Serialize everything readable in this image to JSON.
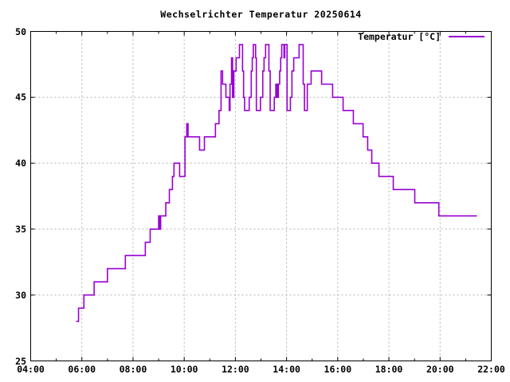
{
  "title": "Wechselrichter Temperatur 20250614",
  "legend": {
    "label": "Temperatur [°C]"
  },
  "colors": {
    "line": "#9800d3",
    "grid": "#b0b0b0",
    "axis": "#000000",
    "background": "#ffffff"
  },
  "chart_data": {
    "type": "line",
    "style": "steps",
    "title": "Wechselrichter Temperatur 20250614",
    "series_name": "Temperatur [°C]",
    "legend_position": "top-right",
    "grid": true,
    "xlabel": "",
    "ylabel": "",
    "x_axis": {
      "min": 4,
      "max": 22,
      "major_ticks": [
        4,
        6,
        8,
        10,
        12,
        14,
        16,
        18,
        20,
        22
      ],
      "tick_labels": [
        "04:00",
        "06:00",
        "08:00",
        "10:00",
        "12:00",
        "14:00",
        "16:00",
        "18:00",
        "20:00",
        "22:00"
      ],
      "minor_ticks": [
        5,
        7,
        9,
        11,
        13,
        15,
        17,
        19,
        21
      ]
    },
    "y_axis": {
      "min": 25,
      "max": 50,
      "major_ticks": [
        25,
        30,
        35,
        40,
        45,
        50
      ],
      "tick_labels": [
        "25",
        "30",
        "35",
        "40",
        "45",
        "50"
      ]
    },
    "points_format": [
      "time_hours_decimal",
      "temperature_celsius"
    ],
    "points": [
      [
        5.78,
        28
      ],
      [
        5.87,
        29
      ],
      [
        6.08,
        30
      ],
      [
        6.48,
        31
      ],
      [
        7.0,
        32
      ],
      [
        7.7,
        33
      ],
      [
        8.48,
        34
      ],
      [
        8.67,
        35
      ],
      [
        9.0,
        36
      ],
      [
        9.03,
        35
      ],
      [
        9.08,
        36
      ],
      [
        9.28,
        37
      ],
      [
        9.42,
        38
      ],
      [
        9.54,
        39
      ],
      [
        9.6,
        40
      ],
      [
        9.82,
        39
      ],
      [
        10.03,
        42
      ],
      [
        10.1,
        43
      ],
      [
        10.15,
        42
      ],
      [
        10.6,
        41
      ],
      [
        10.79,
        42
      ],
      [
        11.22,
        43
      ],
      [
        11.36,
        44
      ],
      [
        11.44,
        47
      ],
      [
        11.5,
        46
      ],
      [
        11.63,
        45
      ],
      [
        11.76,
        44
      ],
      [
        11.79,
        46
      ],
      [
        11.85,
        48
      ],
      [
        11.89,
        45
      ],
      [
        11.94,
        47
      ],
      [
        12.03,
        48
      ],
      [
        12.16,
        49
      ],
      [
        12.28,
        47
      ],
      [
        12.32,
        45
      ],
      [
        12.36,
        44
      ],
      [
        12.54,
        45
      ],
      [
        12.62,
        47
      ],
      [
        12.66,
        48
      ],
      [
        12.7,
        49
      ],
      [
        12.79,
        48
      ],
      [
        12.82,
        44
      ],
      [
        12.98,
        45
      ],
      [
        13.07,
        47
      ],
      [
        13.12,
        48
      ],
      [
        13.18,
        49
      ],
      [
        13.31,
        47
      ],
      [
        13.36,
        44
      ],
      [
        13.52,
        45
      ],
      [
        13.58,
        46
      ],
      [
        13.63,
        45
      ],
      [
        13.68,
        46
      ],
      [
        13.73,
        47
      ],
      [
        13.77,
        48
      ],
      [
        13.81,
        49
      ],
      [
        13.9,
        48
      ],
      [
        13.93,
        49
      ],
      [
        14.02,
        44
      ],
      [
        14.15,
        45
      ],
      [
        14.21,
        47
      ],
      [
        14.28,
        48
      ],
      [
        14.49,
        49
      ],
      [
        14.65,
        46
      ],
      [
        14.7,
        44
      ],
      [
        14.81,
        46
      ],
      [
        14.96,
        47
      ],
      [
        15.37,
        46
      ],
      [
        15.8,
        45
      ],
      [
        16.21,
        44
      ],
      [
        16.61,
        43
      ],
      [
        16.99,
        42
      ],
      [
        17.17,
        41
      ],
      [
        17.33,
        40
      ],
      [
        17.61,
        39
      ],
      [
        18.17,
        38
      ],
      [
        19.01,
        37
      ],
      [
        19.95,
        36
      ]
    ],
    "end_time": 21.44
  }
}
